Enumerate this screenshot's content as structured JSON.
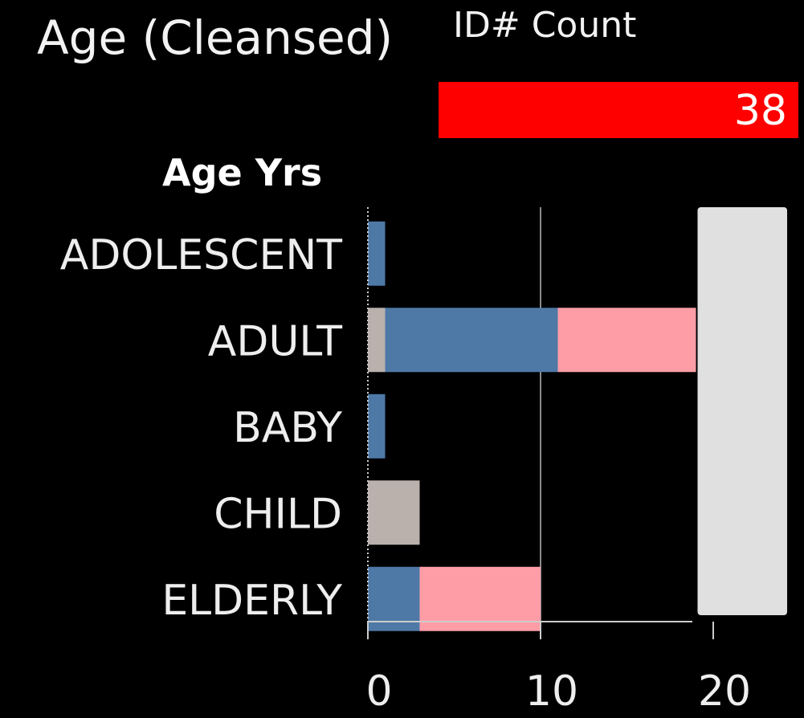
{
  "header": {
    "title": "Age (Cleansed)",
    "kpi_label": "ID# Count",
    "kpi_value": "38"
  },
  "colors": {
    "background": "#000000",
    "kpi_bar": "#ff0000",
    "series_blue": "#4e79a7",
    "series_pink": "#ff9da7",
    "series_tan": "#bab0ac",
    "highlight_band": "#e0e0e0",
    "reference_line": "#8a8a8a",
    "axis": "#cccccc"
  },
  "chart_data": {
    "type": "bar",
    "orientation": "horizontal",
    "stacked": true,
    "ylabel": "Age Yrs",
    "categories": [
      "ADOLESCENT",
      "ADULT",
      "BABY",
      "CHILD",
      "ELDERLY"
    ],
    "series": [
      {
        "color": "#bab0ac",
        "values": [
          0,
          1,
          0,
          3,
          0
        ]
      },
      {
        "color": "#4e79a7",
        "values": [
          1,
          10,
          1,
          0,
          3
        ]
      },
      {
        "color": "#ff9da7",
        "values": [
          0,
          8,
          0,
          0,
          7
        ]
      }
    ],
    "xlim": [
      0,
      24
    ],
    "xticks": [
      0,
      10,
      20
    ],
    "reference_line": 10,
    "highlight_band": [
      19,
      24
    ],
    "grid": false,
    "legend": "none"
  }
}
